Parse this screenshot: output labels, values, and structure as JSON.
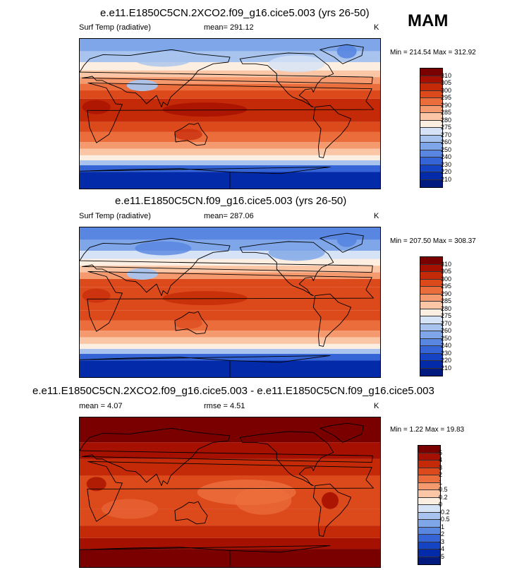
{
  "season": "MAM",
  "panels": [
    {
      "title": "e.e11.E1850C5CN.2XCO2.f09_g16.cice5.003 (yrs 26-50)",
      "variable": "Surf Temp (radiative)",
      "stat": "mean= 291.12",
      "units": "K",
      "minmax": "Min = 214.54 Max = 312.92",
      "colorbar_labels": [
        "310",
        "305",
        "300",
        "295",
        "290",
        "285",
        "280",
        "275",
        "270",
        "260",
        "250",
        "240",
        "230",
        "220",
        "210"
      ]
    },
    {
      "title": "e.e11.E1850C5CN.f09_g16.cice5.003 (yrs 26-50)",
      "variable": "Surf Temp (radiative)",
      "stat": "mean= 287.06",
      "units": "K",
      "minmax": "Min = 207.50 Max = 308.37",
      "colorbar_labels": [
        "310",
        "305",
        "300",
        "295",
        "290",
        "285",
        "280",
        "275",
        "270",
        "260",
        "250",
        "240",
        "230",
        "220",
        "210"
      ]
    },
    {
      "title": "e.e11.E1850C5CN.2XCO2.f09_g16.cice5.003 - e.e11.E1850C5CN.f09_g16.cice5.003",
      "mean": "mean =  4.07",
      "rmse": "rmse =   4.51",
      "units": "K",
      "minmax": "Min =  1.22 Max =  19.83",
      "colorbar_labels": [
        "5",
        "4",
        "3",
        "2",
        "1",
        "0.5",
        "0.2",
        "0",
        "-0.2",
        "-0.5",
        "-1",
        "-2",
        "-3",
        "-4",
        "-5"
      ]
    }
  ],
  "colors": {
    "abs_scale": [
      "#7a0000",
      "#a61000",
      "#c42a08",
      "#dc4a1c",
      "#ec6d3c",
      "#f49a6e",
      "#fac6a6",
      "#fdeee2",
      "#d6e2f6",
      "#a8c4ee",
      "#7ea6e8",
      "#5886e0",
      "#3464d6",
      "#1444c4",
      "#032aa8",
      "#001a80"
    ],
    "diff_scale": [
      "#7a0000",
      "#a61000",
      "#c42a08",
      "#dc4a1c",
      "#ec6d3c",
      "#f49a6e",
      "#fac6a6",
      "#fdeee2",
      "#d6e2f6",
      "#a8c4ee",
      "#7ea6e8",
      "#5886e0",
      "#3464d6",
      "#1444c4",
      "#032aa8",
      "#001a80"
    ]
  }
}
